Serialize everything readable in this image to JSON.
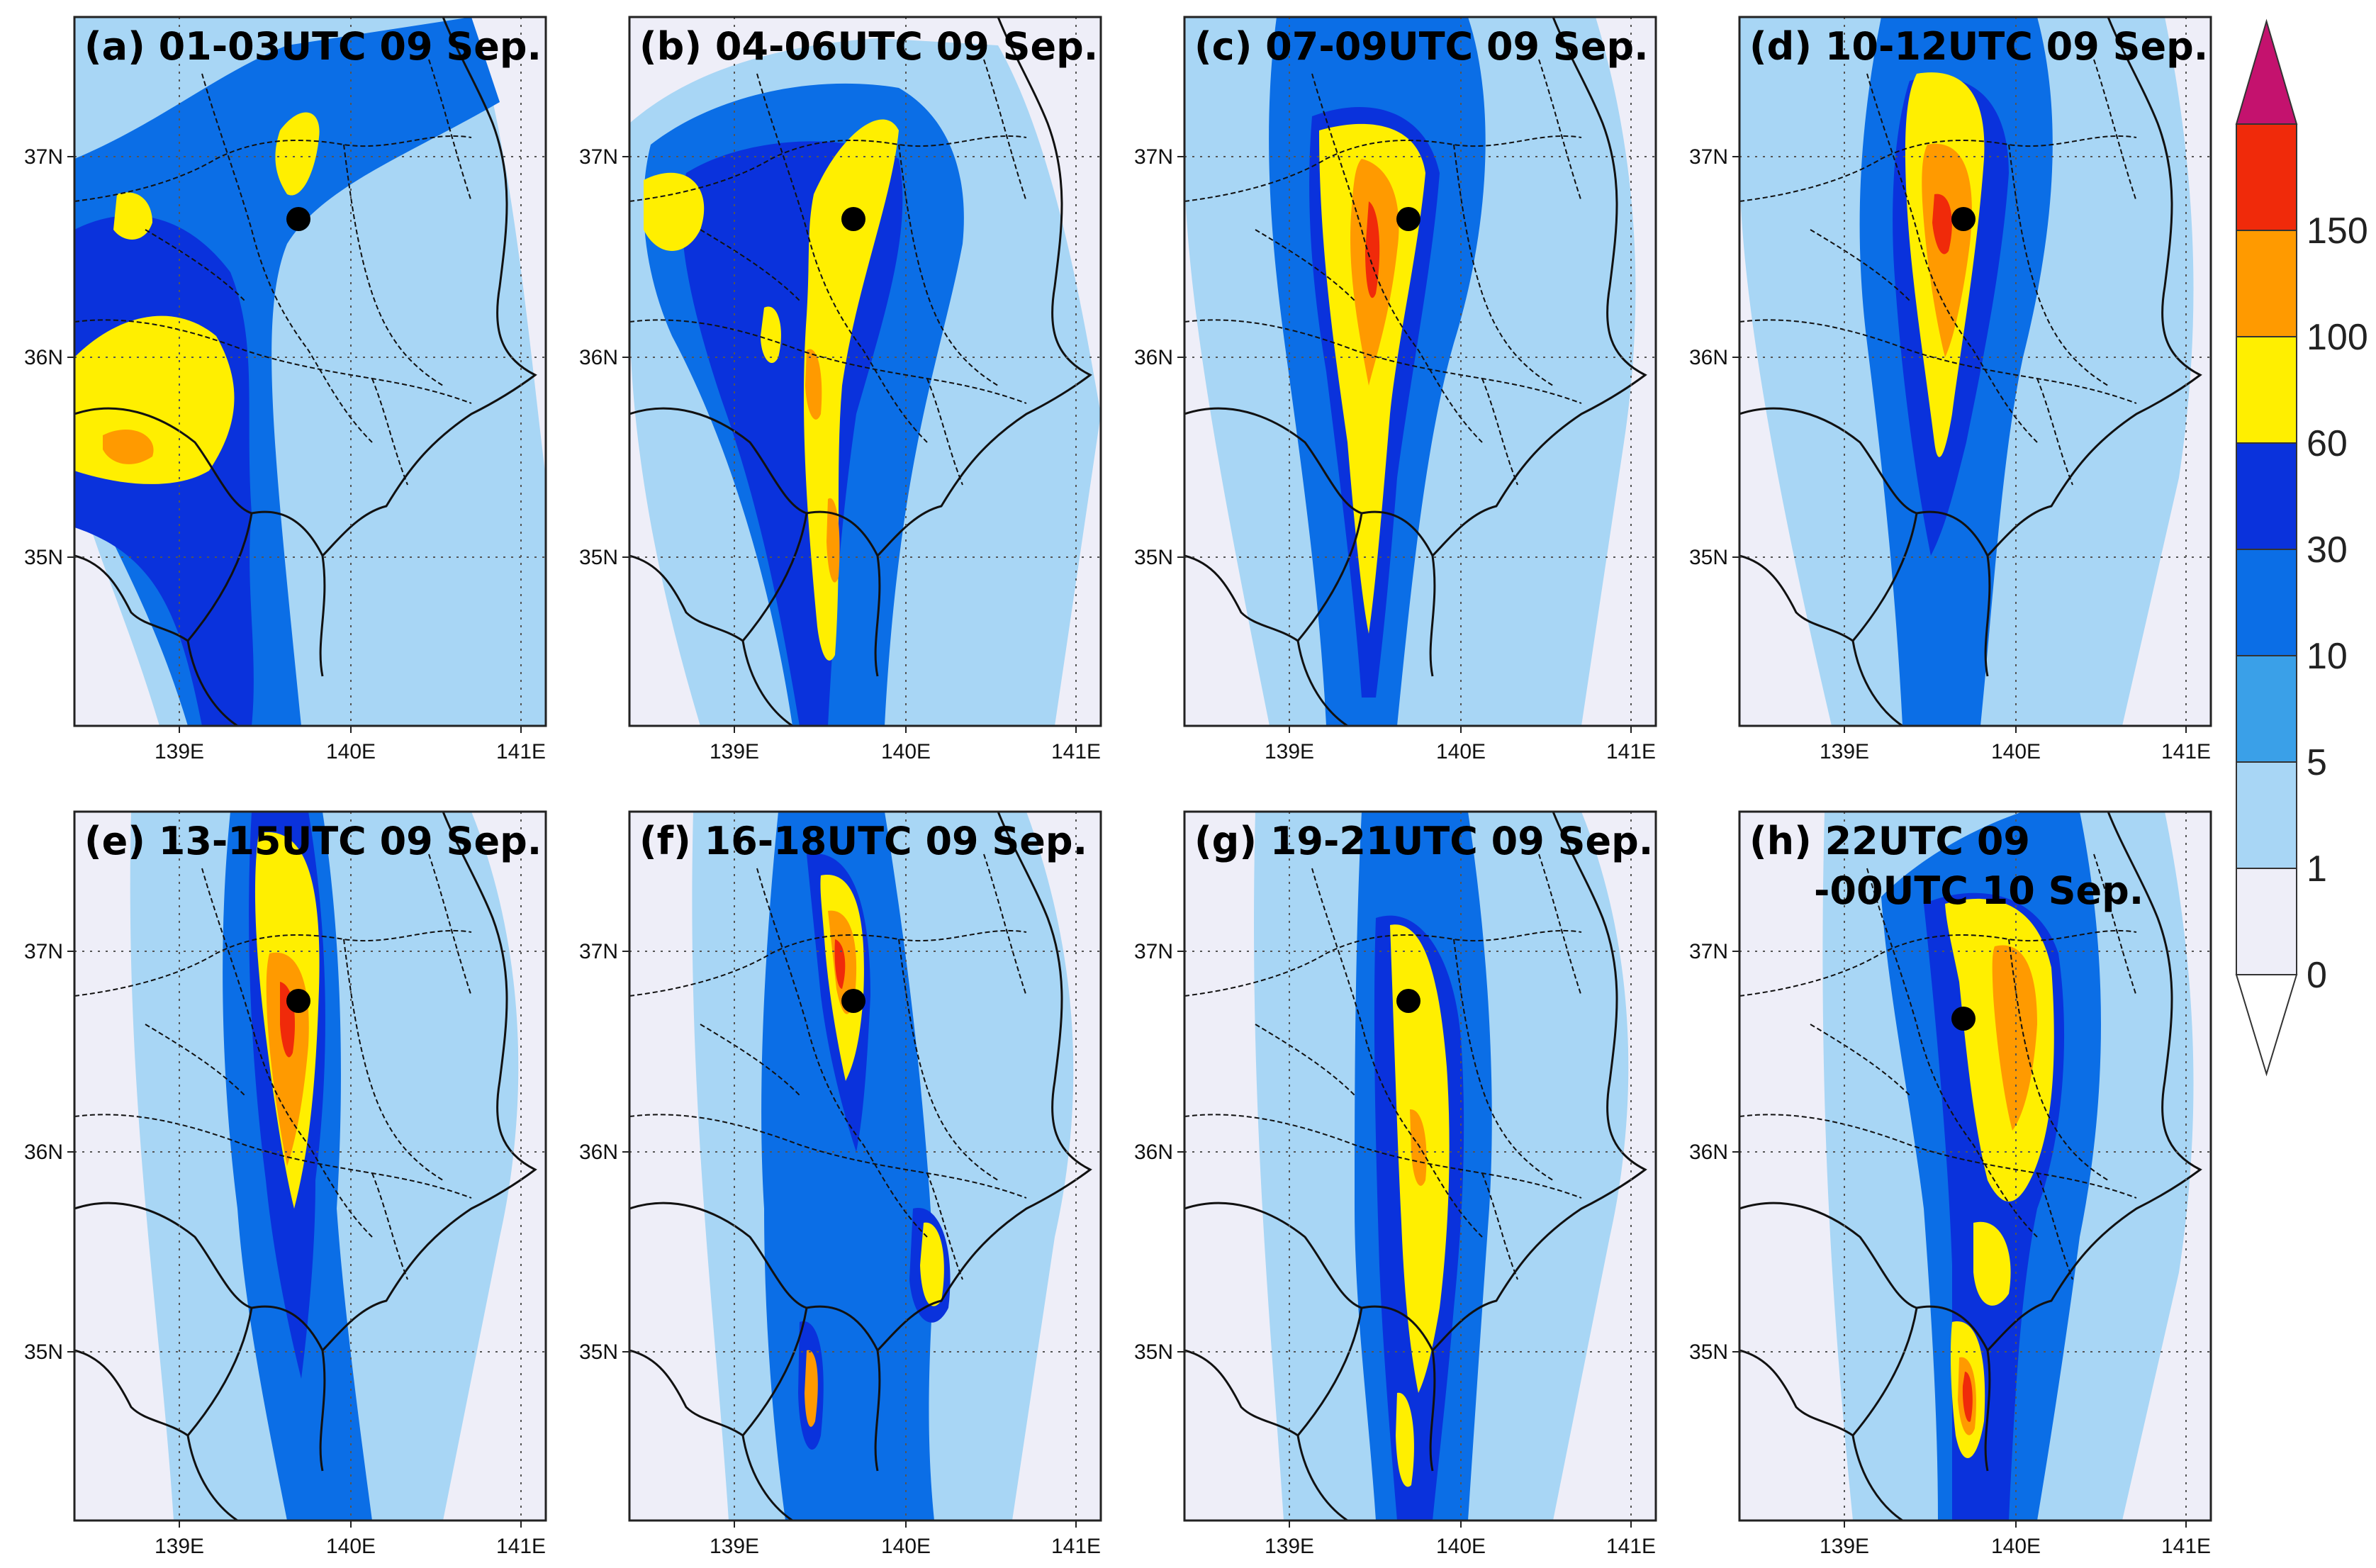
{
  "panels": [
    {
      "title": "(a) 01-03UTC 09 Sep.",
      "title_line2": ""
    },
    {
      "title": "(b) 04-06UTC 09 Sep.",
      "title_line2": ""
    },
    {
      "title": "(c) 07-09UTC 09 Sep.",
      "title_line2": ""
    },
    {
      "title": "(d) 10-12UTC 09 Sep.",
      "title_line2": ""
    },
    {
      "title": "(e) 13-15UTC 09 Sep.",
      "title_line2": ""
    },
    {
      "title": "(f) 16-18UTC 09 Sep.",
      "title_line2": ""
    },
    {
      "title": "(g) 19-21UTC 09 Sep.",
      "title_line2": ""
    },
    {
      "title": "(h) 22UTC 09",
      "title_line2": "-00UTC 10 Sep."
    }
  ],
  "map": {
    "lat_ticks": [
      "37N",
      "36N",
      "35N"
    ],
    "lon_ticks": [
      "139E",
      "140E",
      "141E"
    ],
    "marker_color": "#000000"
  },
  "colorbar": {
    "levels": [
      "0",
      "1",
      "5",
      "10",
      "30",
      "60",
      "100",
      "150"
    ],
    "colors": [
      "#eeeef8",
      "#a8d6f5",
      "#3aa0e8",
      "#0b6ee6",
      "#0a32dc",
      "#ffef00",
      "#ff9a00",
      "#f02a0a"
    ],
    "low_extend_color": "#ffffff",
    "high_extend_color": "#c4126e"
  },
  "colors": {
    "light": "#a8d6f5",
    "mid": "#3aa0e8",
    "blue": "#0b6ee6",
    "dark": "#0a32dc",
    "yellow": "#ffef00",
    "orange": "#ff9a00",
    "red": "#f02a0a",
    "veryLight": "#eeeef8"
  }
}
